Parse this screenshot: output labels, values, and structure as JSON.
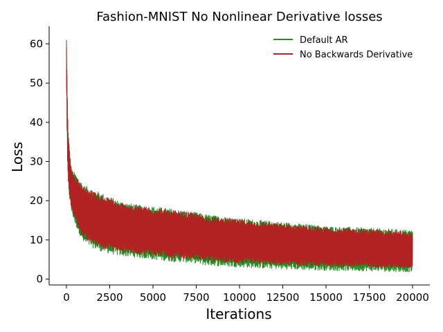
{
  "chart_data": {
    "type": "line",
    "title": "Fashion-MNIST No Nonlinear Derivative losses",
    "xlabel": "Iterations",
    "ylabel": "Loss",
    "xlim": [
      -1000,
      21000
    ],
    "ylim": [
      -1.5,
      64.5
    ],
    "xticks": [
      0,
      2500,
      5000,
      7500,
      10000,
      12500,
      15000,
      17500,
      20000
    ],
    "yticks": [
      0,
      10,
      20,
      30,
      40,
      50,
      60
    ],
    "grid": false,
    "legend_position": "top-right",
    "series": [
      {
        "name": "Default AR",
        "color": "#228b22",
        "x": [
          0,
          50,
          100,
          200,
          300,
          500,
          750,
          1000,
          1500,
          2000,
          2500,
          3000,
          4000,
          5000,
          6000,
          7500,
          8000,
          10000,
          12500,
          15000,
          17500,
          20000
        ],
        "upper": [
          61.5,
          47,
          38,
          32,
          28,
          27,
          25.5,
          24,
          23,
          22,
          21,
          20,
          19,
          18.5,
          18,
          17,
          16.5,
          15.5,
          14.5,
          13.5,
          13,
          12.5
        ],
        "lower": [
          52,
          30,
          24,
          19.5,
          17,
          14,
          11.5,
          9,
          8,
          7,
          6.5,
          6,
          5.5,
          5,
          4.5,
          4,
          3.5,
          3,
          2.5,
          2.2,
          2,
          1.8
        ]
      },
      {
        "name": "No Backwards Derivative",
        "color": "#b22222",
        "x": [
          0,
          50,
          100,
          200,
          300,
          500,
          750,
          1000,
          1500,
          2000,
          2500,
          3000,
          4000,
          5000,
          6000,
          7500,
          8000,
          10000,
          12500,
          15000,
          17500,
          20000
        ],
        "upper": [
          60,
          46,
          37,
          31,
          27.5,
          26.5,
          25,
          23.5,
          22.5,
          21.5,
          20.5,
          19.5,
          18.8,
          18.2,
          17.6,
          16.8,
          16.2,
          15.2,
          14.2,
          13.2,
          12.7,
          12
        ],
        "lower": [
          53,
          31,
          25,
          20.5,
          18,
          15,
          12.5,
          10,
          9,
          8,
          7.5,
          7,
          6.5,
          6,
          5.5,
          5,
          4.5,
          4,
          3.5,
          3.2,
          3,
          2.8
        ]
      }
    ]
  }
}
